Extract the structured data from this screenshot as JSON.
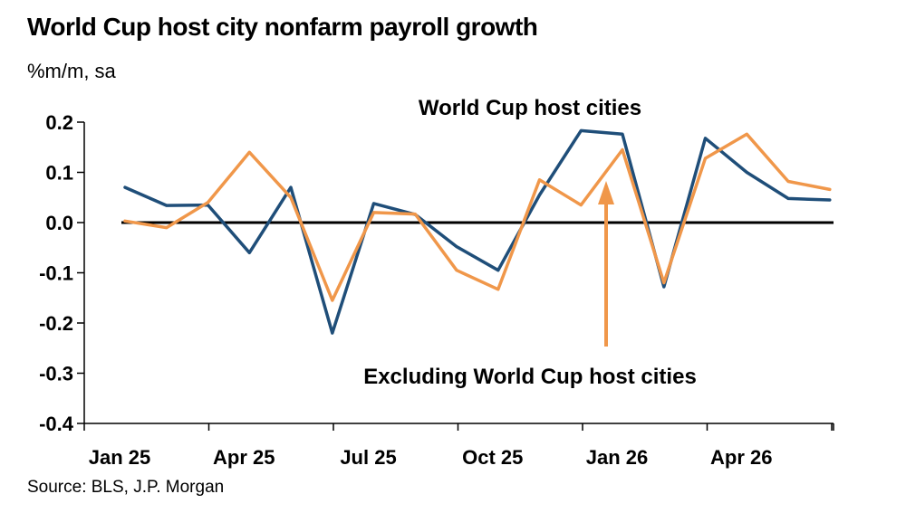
{
  "title": "World Cup host city nonfarm payroll growth",
  "subtitle": "%m/m, sa",
  "source": "Source: BLS, J.P. Morgan",
  "colors": {
    "host": "#1f4e79",
    "ex_host": "#f0974a",
    "axis": "#000000"
  },
  "chart_data": {
    "type": "line",
    "x": [
      "Jan 25",
      "Feb 25",
      "Mar 25",
      "Apr 25",
      "May 25",
      "Jun 25",
      "Jul 25",
      "Aug 25",
      "Sep 25",
      "Oct 25",
      "Nov 25",
      "Dec 25",
      "Jan 26",
      "Feb 26",
      "Mar 26",
      "Apr 26",
      "May 26",
      "Jun 26"
    ],
    "xticks": [
      "Jan 25",
      "Apr 25",
      "Jul 25",
      "Oct 25",
      "Jan 26",
      "Apr 26"
    ],
    "yticks": [
      "0.2",
      "0.1",
      "0.0",
      "-0.1",
      "-0.2",
      "-0.3",
      "-0.4"
    ],
    "ylim": [
      -0.4,
      0.2
    ],
    "series": [
      {
        "name": "World Cup host cities",
        "color": "#1f4e79",
        "values": [
          0.07,
          0.034,
          0.035,
          -0.06,
          0.07,
          -0.22,
          0.038,
          0.016,
          -0.048,
          -0.095,
          0.055,
          0.183,
          0.176,
          -0.128,
          0.168,
          0.1,
          0.048,
          0.045
        ]
      },
      {
        "name": "Excluding World Cup host cities",
        "color": "#f0974a",
        "values": [
          0.003,
          -0.01,
          0.04,
          0.14,
          0.05,
          -0.155,
          0.02,
          0.017,
          -0.095,
          -0.133,
          0.085,
          0.035,
          0.145,
          -0.12,
          0.128,
          0.176,
          0.082,
          0.066
        ]
      }
    ],
    "annotations": [
      "World Cup host cities",
      "Excluding World Cup host cities"
    ]
  }
}
